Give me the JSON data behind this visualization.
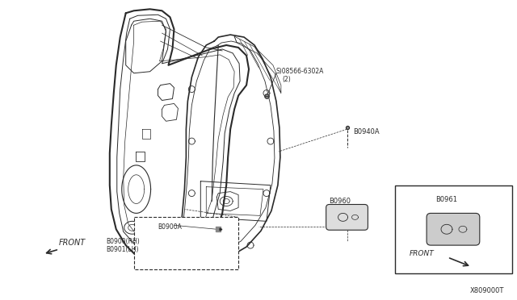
{
  "bg_color": "#ffffff",
  "lc": "#2a2a2a",
  "diagram_id": "X809000T",
  "labels": {
    "08566_6302A_line1": "S)08566-6302A",
    "08566_6302A_line2": "(2)",
    "B0940A": "B0940A",
    "B0960": "B0960",
    "B0900A": "B0900A",
    "B0900_RH": "B0900(RH)",
    "B0901_LH": "B0901(LH)",
    "B0961": "B0961",
    "FRONT_main": "FRONT",
    "FRONT_inset": "FRONT"
  }
}
